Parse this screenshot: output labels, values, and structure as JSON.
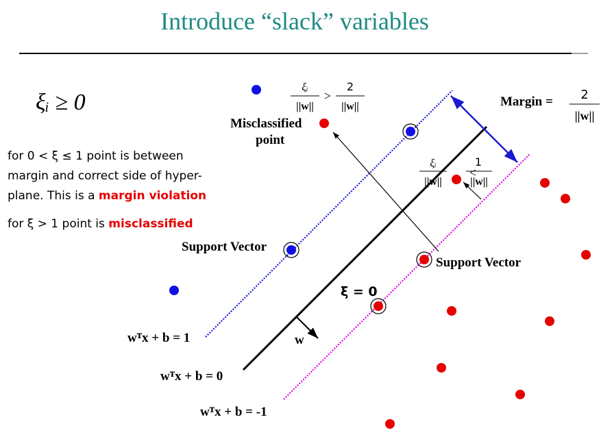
{
  "slide": {
    "title": "Introduce “slack” variables",
    "xi_condition": "ξᵢ ≥ 0",
    "text": {
      "line1_a": "for 0 < ξ ≤ 1 point is between",
      "line2": "margin and correct side of hyper-",
      "line3_a": "plane.  This is a ",
      "line3_b": "margin violation",
      "line4_a": "for ξ > 1 point is ",
      "line4_b": "misclassified"
    },
    "labels": {
      "misclassified_1": "Misclassified",
      "misclassified_2": "point",
      "support_vector_left": "Support Vector",
      "support_vector_right": "Support Vector",
      "margin": "Margin =",
      "xi_zero": "ξ = 0",
      "w": "w"
    },
    "fractions": {
      "margin_num": "2",
      "margin_den": "||w||",
      "top_left_num": "ξᵢ",
      "top_left_den": "||w||",
      "top_op": ">",
      "top_right_num": "2",
      "top_right_den": "||w||",
      "mid_left_num": "ξᵢ",
      "mid_left_den": "||w||",
      "mid_op": "<",
      "mid_right_num": "1",
      "mid_right_den": "||w||"
    },
    "equations": {
      "plus_one": "wᵀx + b = 1",
      "zero": "wᵀx + b = 0",
      "minus_one": "wᵀx + b = -1"
    },
    "colors": {
      "title": "#1e8a82",
      "blue_point": "#1010e6",
      "red_point": "#e60000",
      "margin_violation_text": "#e60000",
      "plus_margin_line": "#1a1ad0",
      "minus_margin_line": "#e000e0"
    }
  }
}
